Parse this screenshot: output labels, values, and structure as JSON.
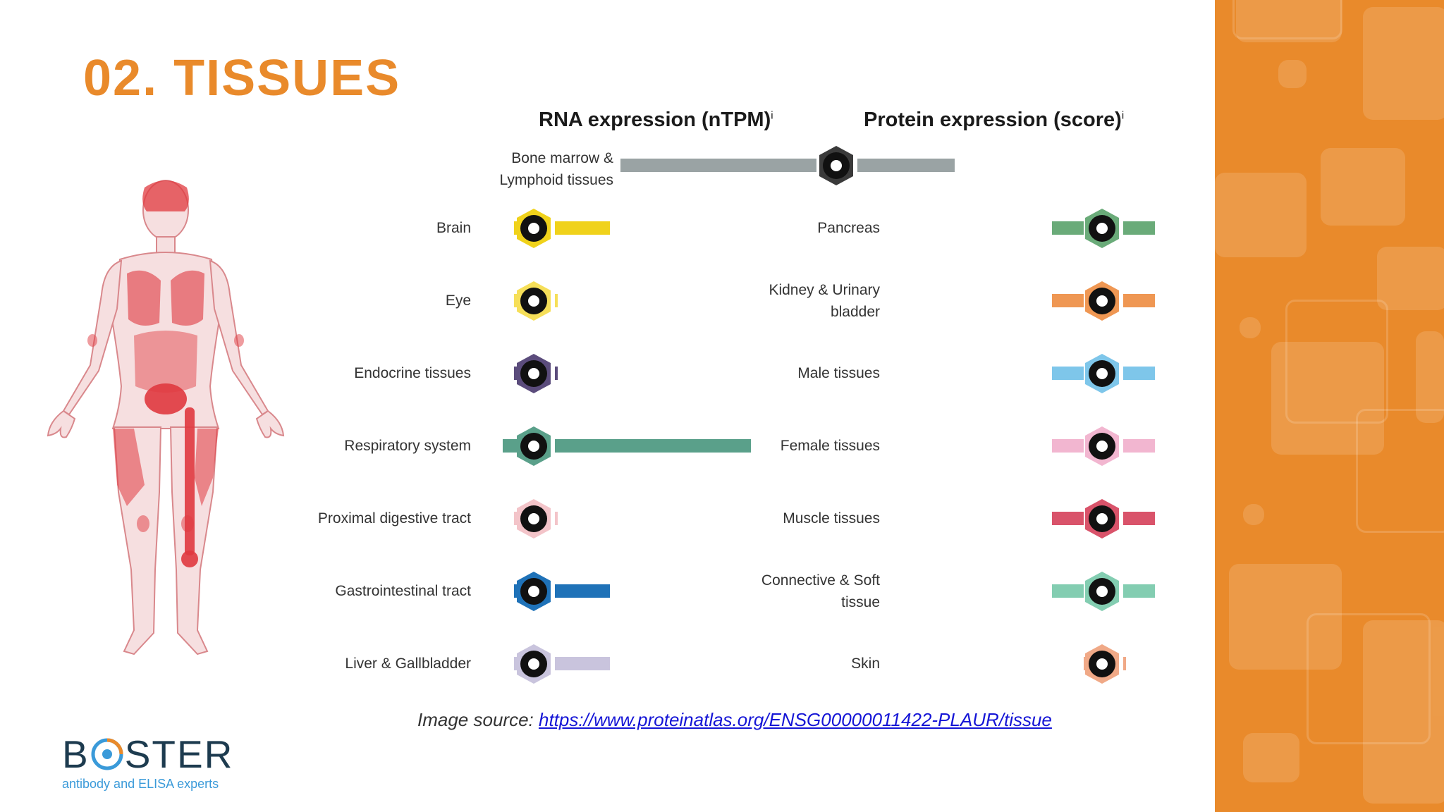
{
  "slide": {
    "title": "02. TISSUES"
  },
  "chart": {
    "rna_header": "RNA expression (nTPM)",
    "rna_header_sup": "i",
    "protein_header": "Protein expression (score)",
    "protein_header_sup": "i",
    "top_row": {
      "label_line1": "Bone marrow &",
      "label_line2": "Lymphoid tissues",
      "icon": "lymph-node-icon",
      "color": "#9aa3a4"
    },
    "rna_rows": [
      {
        "label_line1": "Brain",
        "label_line2": "",
        "icon": "brain-icon",
        "color": "#f0d21b",
        "level": 0.28
      },
      {
        "label_line1": "Eye",
        "label_line2": "",
        "icon": "eye-icon",
        "color": "#f6df59",
        "level": 0.0
      },
      {
        "label_line1": "Endocrine tissues",
        "label_line2": "",
        "icon": "thyroid-icon",
        "color": "#5b4c7c",
        "level": 0.0
      },
      {
        "label_line1": "Respiratory system",
        "label_line2": "",
        "icon": "lungs-icon",
        "color": "#5aa08a",
        "level": 1.0
      },
      {
        "label_line1": "Proximal digestive tract",
        "label_line2": "",
        "icon": "mouth-icon",
        "color": "#f3c4c9",
        "level": 0.0
      },
      {
        "label_line1": "Gastrointestinal tract",
        "label_line2": "",
        "icon": "stomach-icon",
        "color": "#1f72b8",
        "level": 0.28
      },
      {
        "label_line1": "Liver & Gallbladder",
        "label_line2": "",
        "icon": "liver-icon",
        "color": "#c9c4dd",
        "level": 0.28
      }
    ],
    "protein_rows": [
      {
        "label_line1": "Pancreas",
        "label_line2": "",
        "icon": "pancreas-icon",
        "color": "#6aab79",
        "level": 0.5
      },
      {
        "label_line1": "Kidney & Urinary",
        "label_line2": "bladder",
        "icon": "kidney-icon",
        "color": "#ef9753",
        "level": 0.5
      },
      {
        "label_line1": "Male tissues",
        "label_line2": "",
        "icon": "male-tissue-icon",
        "color": "#7ec6ea",
        "level": 0.5
      },
      {
        "label_line1": "Female tissues",
        "label_line2": "",
        "icon": "uterus-icon",
        "color": "#f2b6d0",
        "level": 0.5
      },
      {
        "label_line1": "Muscle tissues",
        "label_line2": "",
        "icon": "heart-muscle-icon",
        "color": "#d9536a",
        "level": 0.5
      },
      {
        "label_line1": "Connective & Soft",
        "label_line2": "tissue",
        "icon": "connective-tissue-icon",
        "color": "#83cdb1",
        "level": 0.5
      },
      {
        "label_line1": "Skin",
        "label_line2": "",
        "icon": "skin-icon",
        "color": "#f0a987",
        "level": 0.0
      }
    ]
  },
  "caption": {
    "prefix": "Image source: ",
    "link_text": "https://www.proteinatlas.org/ENSG00000011422-PLAUR/tissue"
  },
  "logo": {
    "word_pre": "B",
    "word_post": "STER",
    "tagline": "antibody and ELISA experts"
  },
  "theme": {
    "accent": "#e98a2b",
    "body_figure": "#e0393f"
  }
}
